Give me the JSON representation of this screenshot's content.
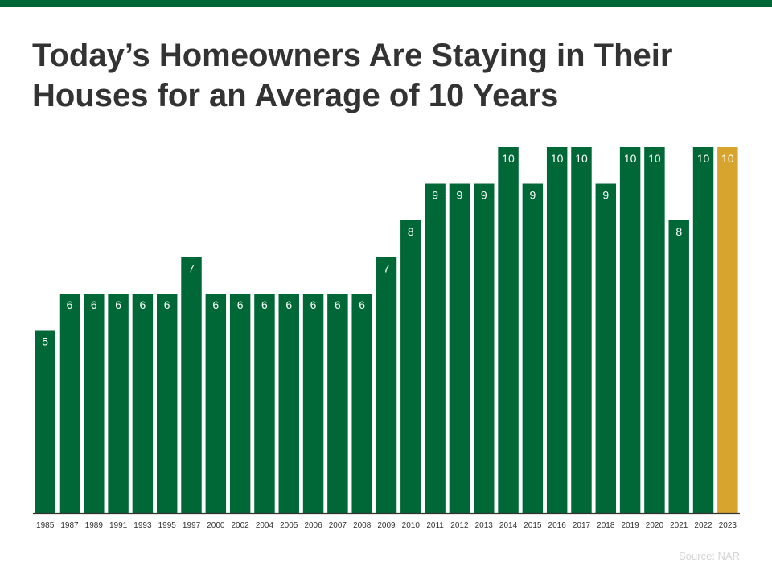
{
  "title": "Today’s Homeowners Are Staying in Their Houses for an Average of 10 Years",
  "source": "Source: NAR",
  "colors": {
    "bar": "#006837",
    "highlight": "#d7a52e",
    "top_bar": "#006837",
    "axis": "#333333"
  },
  "chart_data": {
    "type": "bar",
    "title": "Today’s Homeowners Are Staying in Their Houses for an Average of 10 Years",
    "xlabel": "",
    "ylabel": "",
    "ylim": [
      0,
      10
    ],
    "grid": false,
    "legend": "none",
    "categories": [
      "1985",
      "1987",
      "1989",
      "1991",
      "1993",
      "1995",
      "1997",
      "2000",
      "2002",
      "2004",
      "2005",
      "2006",
      "2007",
      "2008",
      "2009",
      "2010",
      "2011",
      "2012",
      "2013",
      "2014",
      "2015",
      "2016",
      "2017",
      "2018",
      "2019",
      "2020",
      "2021",
      "2022",
      "2023"
    ],
    "values": [
      5,
      6,
      6,
      6,
      6,
      6,
      7,
      6,
      6,
      6,
      6,
      6,
      6,
      6,
      7,
      8,
      9,
      9,
      9,
      10,
      9,
      10,
      10,
      9,
      10,
      10,
      8,
      10,
      10
    ],
    "highlighted": [
      "2023"
    ]
  }
}
